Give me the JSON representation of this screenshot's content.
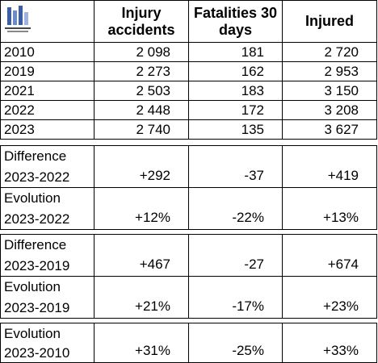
{
  "table": {
    "headers": [
      "Injury accidents",
      "Fatalities 30 days",
      "Injured"
    ],
    "rows": [
      [
        "2010",
        "2 098",
        "181",
        "2 720"
      ],
      [
        "2019",
        "2 273",
        "162",
        "2 953"
      ],
      [
        "2021",
        "2 503",
        "183",
        "3 150"
      ],
      [
        "2022",
        "2 448",
        "172",
        "3 208"
      ],
      [
        "2023",
        "2 740",
        "135",
        "3 627"
      ]
    ],
    "sections": [
      [
        {
          "label": [
            "Difference",
            "2023-2022"
          ],
          "values": [
            "+292",
            "-37",
            "+419"
          ]
        },
        {
          "label": [
            "Evolution",
            "2023-2022"
          ],
          "values": [
            "+12%",
            "-22%",
            "+13%"
          ]
        }
      ],
      [
        {
          "label": [
            "Difference",
            "2023-2019"
          ],
          "values": [
            "+467",
            "-27",
            "+674"
          ]
        },
        {
          "label": [
            "Evolution",
            "2023-2019"
          ],
          "values": [
            "+21%",
            "-17%",
            "+23%"
          ]
        }
      ],
      [
        {
          "label": [
            "Evolution",
            "2023-2010"
          ],
          "values": [
            "+31%",
            "-25%",
            "+33%"
          ]
        }
      ]
    ]
  }
}
